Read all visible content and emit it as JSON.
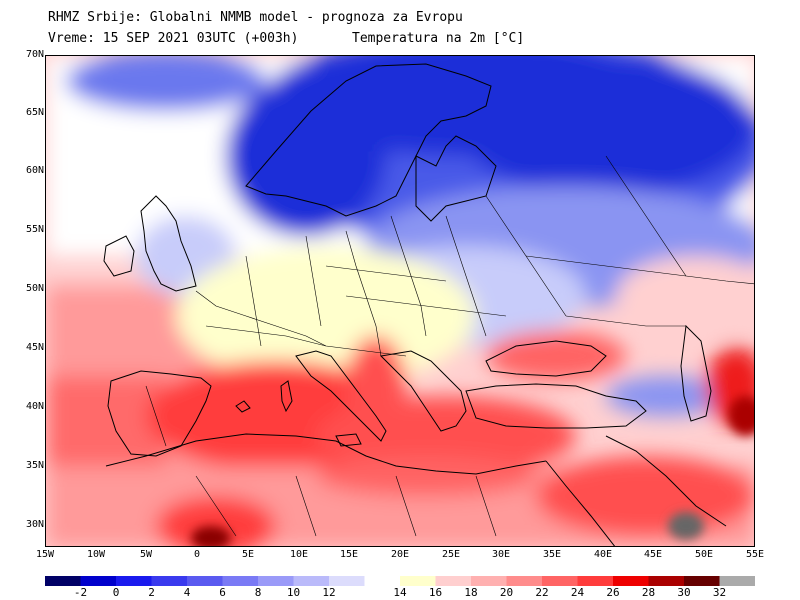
{
  "header": {
    "line1": "RHMZ Srbije: Globalni NMMB model - prognoza za Evropu",
    "line2": "Vreme: 15 SEP 2021 03UTC (+003h)",
    "parameter": "Temperatura na 2m [°C]"
  },
  "axes": {
    "lat_labels": [
      "70N",
      "65N",
      "60N",
      "55N",
      "50N",
      "45N",
      "40N",
      "35N",
      "30N"
    ],
    "lon_labels": [
      "15W",
      "10W",
      "5W",
      "0",
      "5E",
      "10E",
      "15E",
      "20E",
      "25E",
      "30E",
      "35E",
      "40E",
      "45E",
      "50E",
      "55E"
    ]
  },
  "colorbar": {
    "labels": [
      "-2",
      "0",
      "2",
      "4",
      "6",
      "8",
      "10",
      "12",
      "14",
      "16",
      "18",
      "20",
      "22",
      "24",
      "26",
      "28",
      "30",
      "32"
    ],
    "colors": [
      "#000066",
      "#0000cc",
      "#1a1aee",
      "#3a3aee",
      "#5a5af0",
      "#7a7af5",
      "#9a9af8",
      "#babafa",
      "#dcdcfc",
      "#ffffff",
      "#ffffcc",
      "#ffcfcf",
      "#ffb0b0",
      "#ff8c8c",
      "#ff6464",
      "#ff3c3c",
      "#ee0000",
      "#aa0000",
      "#660000",
      "#aaaaaa"
    ]
  },
  "map_colors": {
    "deep_blue": "#1a2fd8",
    "blue": "#4a5ae8",
    "light_blue": "#8a94f2",
    "pale_blue": "#c8ccfa",
    "cream": "#ffffcc",
    "pink": "#ffc0c0",
    "salmon": "#ff9a9a",
    "red": "#ff5050",
    "deep_red": "#ee1a1a",
    "dark_red": "#8a0000",
    "grey": "#aaaaaa",
    "border": "#000000"
  }
}
